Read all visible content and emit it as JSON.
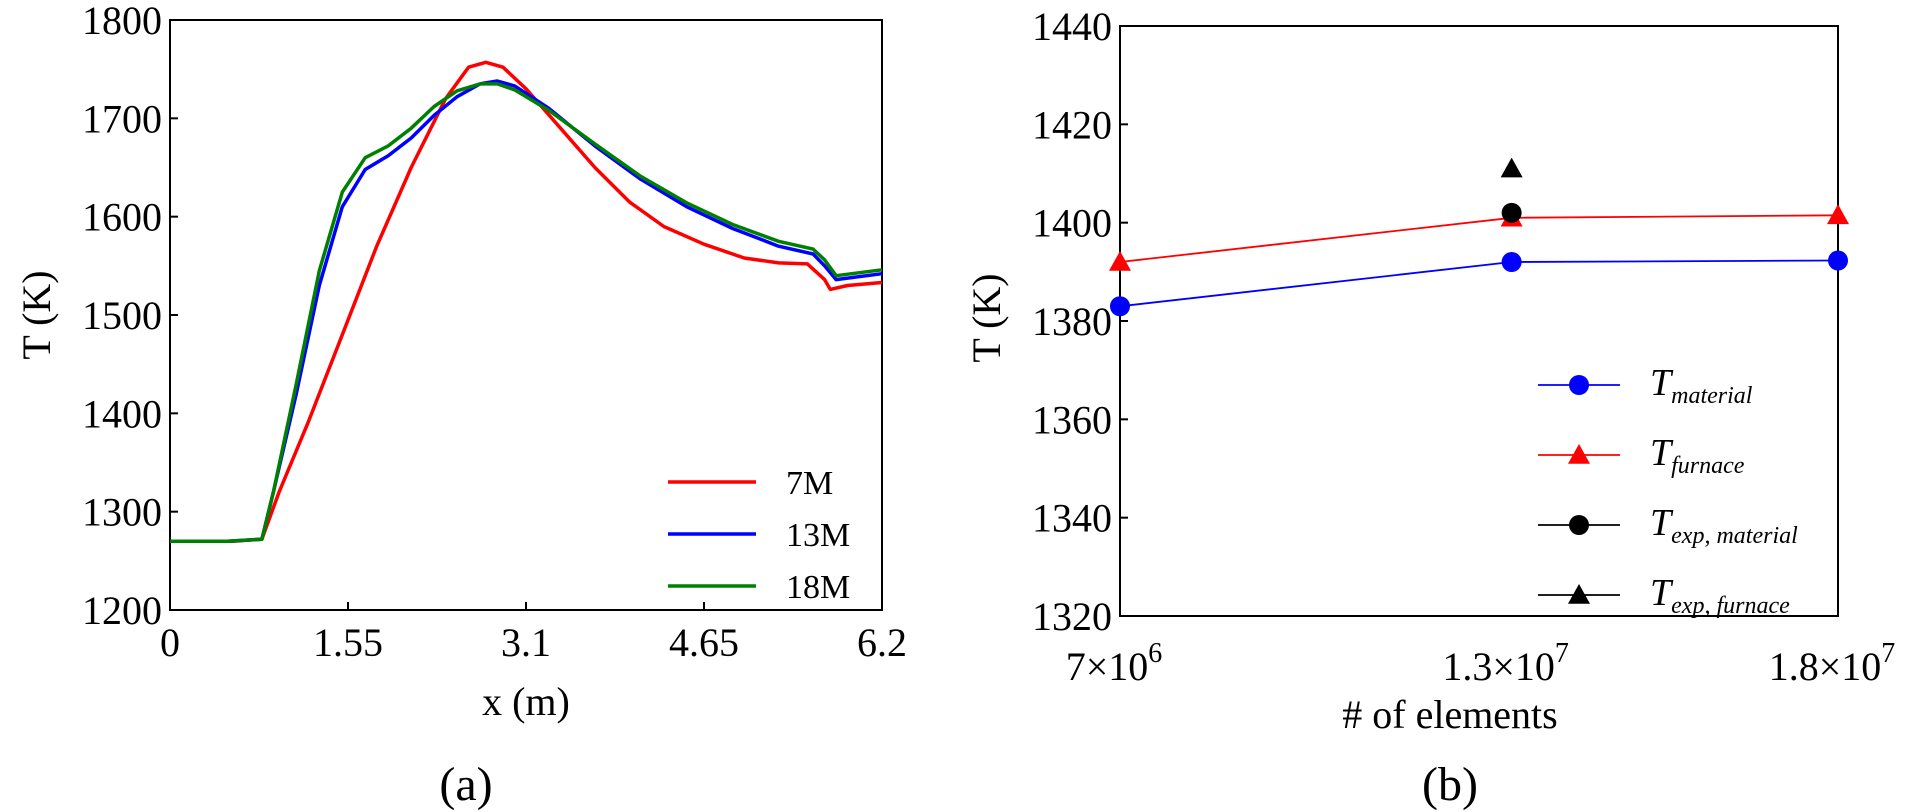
{
  "chart_data": [
    {
      "id": "a",
      "type": "line",
      "panel_label": "(a)",
      "xlabel": "x (m)",
      "ylabel": "T (K)",
      "xlim": [
        0,
        6.2
      ],
      "ylim": [
        1200,
        1800
      ],
      "xticks": [
        0,
        1.55,
        3.1,
        4.65,
        6.2
      ],
      "xtick_labels": [
        "0",
        "1.55",
        "3.1",
        "4.65",
        "6.2"
      ],
      "yticks": [
        1200,
        1300,
        1400,
        1500,
        1600,
        1700,
        1800
      ],
      "ytick_labels": [
        "1200",
        "1300",
        "1400",
        "1500",
        "1600",
        "1700",
        "1800"
      ],
      "legend_position": "bottom-right",
      "series": [
        {
          "name": "7M",
          "color": "#ff0000",
          "x": [
            0,
            0.55,
            0.8,
            0.95,
            1.2,
            1.5,
            1.8,
            2.1,
            2.4,
            2.6,
            2.75,
            2.9,
            3.1,
            3.4,
            3.7,
            4.0,
            4.3,
            4.65,
            5.0,
            5.3,
            5.55,
            5.7,
            5.75,
            5.9,
            6.2
          ],
          "y": [
            1270,
            1270,
            1272,
            1320,
            1390,
            1480,
            1570,
            1650,
            1720,
            1752,
            1757,
            1752,
            1730,
            1690,
            1650,
            1615,
            1590,
            1572,
            1558,
            1553,
            1552,
            1536,
            1526,
            1530,
            1533
          ]
        },
        {
          "name": "13M",
          "color": "#0000ff",
          "x": [
            0,
            0.5,
            0.8,
            0.9,
            1.1,
            1.3,
            1.5,
            1.7,
            1.9,
            2.1,
            2.3,
            2.5,
            2.7,
            2.85,
            3.0,
            3.3,
            3.7,
            4.1,
            4.5,
            4.9,
            5.3,
            5.6,
            5.7,
            5.8,
            6.2
          ],
          "y": [
            1270,
            1270,
            1272,
            1320,
            1420,
            1530,
            1610,
            1648,
            1662,
            1680,
            1703,
            1722,
            1735,
            1738,
            1733,
            1710,
            1672,
            1638,
            1610,
            1588,
            1570,
            1562,
            1550,
            1536,
            1542
          ]
        },
        {
          "name": "18M",
          "color": "#008000",
          "x": [
            0,
            0.5,
            0.8,
            0.9,
            1.1,
            1.3,
            1.5,
            1.7,
            1.9,
            2.1,
            2.3,
            2.5,
            2.7,
            2.85,
            3.0,
            3.3,
            3.7,
            4.1,
            4.5,
            4.9,
            5.3,
            5.6,
            5.7,
            5.8,
            6.2
          ],
          "y": [
            1270,
            1270,
            1272,
            1320,
            1430,
            1545,
            1625,
            1660,
            1672,
            1690,
            1712,
            1728,
            1735,
            1735,
            1729,
            1708,
            1674,
            1641,
            1614,
            1592,
            1575,
            1567,
            1556,
            1540,
            1546
          ]
        }
      ]
    },
    {
      "id": "b",
      "type": "line",
      "panel_label": "(b)",
      "xlabel": "# of elements",
      "ylabel": "T (K)",
      "xlim": [
        7000000,
        18000000
      ],
      "ylim": [
        1320,
        1440
      ],
      "xticks": [
        7000000,
        13000000,
        18000000
      ],
      "xtick_labels": [
        {
          "mantissa": "7",
          "times": "×",
          "base": "10",
          "exp": "6"
        },
        {
          "mantissa": "1.3",
          "times": "×",
          "base": "10",
          "exp": "7"
        },
        {
          "mantissa": "1.8",
          "times": "×",
          "base": "10",
          "exp": "7"
        }
      ],
      "yticks": [
        1320,
        1340,
        1360,
        1380,
        1400,
        1420,
        1440
      ],
      "ytick_labels": [
        "1320",
        "1340",
        "1360",
        "1380",
        "1400",
        "1420",
        "1440"
      ],
      "legend_position": "bottom-right",
      "series": [
        {
          "name_main": "T",
          "name_sub": "material",
          "color": "#0000ff",
          "marker": "circle",
          "line": true,
          "x": [
            7000000,
            13000000,
            18000000
          ],
          "y": [
            1383,
            1392,
            1392.3
          ]
        },
        {
          "name_main": "T",
          "name_sub": "furnace",
          "color": "#ff0000",
          "marker": "triangle",
          "line": true,
          "x": [
            7000000,
            13000000,
            18000000
          ],
          "y": [
            1392,
            1401,
            1401.5
          ]
        },
        {
          "name_main": "T",
          "name_sub": "exp, material",
          "color": "#000000",
          "marker": "circle",
          "line": false,
          "x": [
            13000000
          ],
          "y": [
            1402
          ]
        },
        {
          "name_main": "T",
          "name_sub": "exp, furnace",
          "color": "#000000",
          "marker": "triangle",
          "line": false,
          "x": [
            13000000
          ],
          "y": [
            1411
          ]
        }
      ]
    }
  ]
}
